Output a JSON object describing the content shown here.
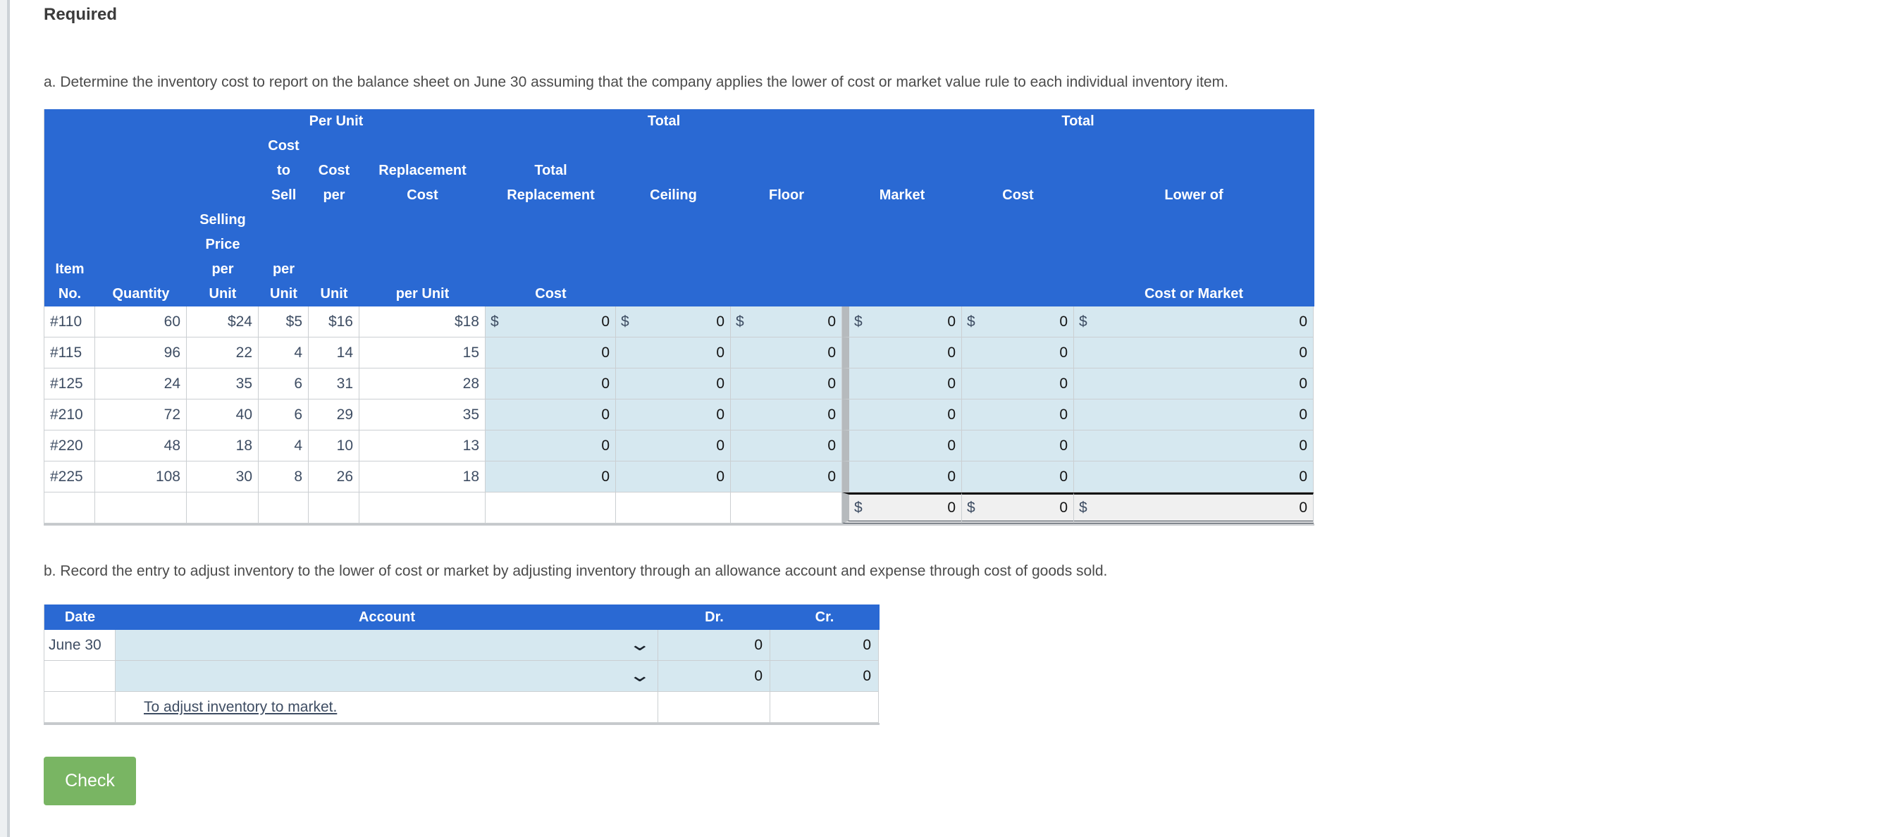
{
  "page": {
    "heading": "Required",
    "instruction_a": "a. Determine the inventory cost to report on the balance sheet on June 30 assuming that the company applies the lower of cost or market value rule to each individual inventory item.",
    "instruction_b": "b. Record the entry to adjust inventory to the lower of cost or market by adjusting inventory through an allowance account and expense through cost of goods sold.",
    "check_button_label": "Check"
  },
  "colors": {
    "header_blue": "#2a69d3",
    "input_cell_blue": "#d6e8f0",
    "totals_gray": "#f0f0f0",
    "button_green": "#79b563",
    "data_text": "#3e4d63"
  },
  "icons": {
    "dropdown_chevron": "⌄"
  },
  "lcm_table": {
    "header_words": [
      "Per Unit",
      "Total",
      "Total",
      "Cost",
      "to",
      "Cost",
      "Replacement",
      "Total",
      "Sell",
      "per",
      "Cost",
      "Replacement",
      "Ceiling",
      "Floor",
      "Market",
      "Cost",
      "Lower of",
      "Selling",
      "Price",
      "Item",
      "per",
      "per",
      "No.",
      "Quantity",
      "Unit",
      "Unit",
      "Unit",
      "per Unit",
      "Cost",
      "Cost or Market"
    ],
    "rows": [
      {
        "item": "#110",
        "quantity": "60",
        "selling_price": "$24",
        "cost_to_sell": "$5",
        "cost_per_unit": "$16",
        "replacement_cost": "$18",
        "cur": "$",
        "total_replacement": "0",
        "ceiling": "0",
        "floor": "0",
        "market": "0",
        "cost": "0",
        "lower": "0"
      },
      {
        "item": "#115",
        "quantity": "96",
        "selling_price": "22",
        "cost_to_sell": "4",
        "cost_per_unit": "14",
        "replacement_cost": "15",
        "cur": "",
        "total_replacement": "0",
        "ceiling": "0",
        "floor": "0",
        "market": "0",
        "cost": "0",
        "lower": "0"
      },
      {
        "item": "#125",
        "quantity": "24",
        "selling_price": "35",
        "cost_to_sell": "6",
        "cost_per_unit": "31",
        "replacement_cost": "28",
        "cur": "",
        "total_replacement": "0",
        "ceiling": "0",
        "floor": "0",
        "market": "0",
        "cost": "0",
        "lower": "0"
      },
      {
        "item": "#210",
        "quantity": "72",
        "selling_price": "40",
        "cost_to_sell": "6",
        "cost_per_unit": "29",
        "replacement_cost": "35",
        "cur": "",
        "total_replacement": "0",
        "ceiling": "0",
        "floor": "0",
        "market": "0",
        "cost": "0",
        "lower": "0"
      },
      {
        "item": "#220",
        "quantity": "48",
        "selling_price": "18",
        "cost_to_sell": "4",
        "cost_per_unit": "10",
        "replacement_cost": "13",
        "cur": "",
        "total_replacement": "0",
        "ceiling": "0",
        "floor": "0",
        "market": "0",
        "cost": "0",
        "lower": "0"
      },
      {
        "item": "#225",
        "quantity": "108",
        "selling_price": "30",
        "cost_to_sell": "8",
        "cost_per_unit": "26",
        "replacement_cost": "18",
        "cur": "",
        "total_replacement": "0",
        "ceiling": "0",
        "floor": "0",
        "market": "0",
        "cost": "0",
        "lower": "0"
      }
    ],
    "totals": {
      "cur": "$",
      "market": "0",
      "cost": "0",
      "lower": "0"
    }
  },
  "journal_table": {
    "headers": [
      "Date",
      "Account",
      "Dr.",
      "Cr."
    ],
    "rows": [
      {
        "date": "June 30",
        "dr": "0",
        "cr": "0"
      },
      {
        "date": "",
        "dr": "0",
        "cr": "0"
      }
    ],
    "note": "To adjust inventory to market."
  }
}
